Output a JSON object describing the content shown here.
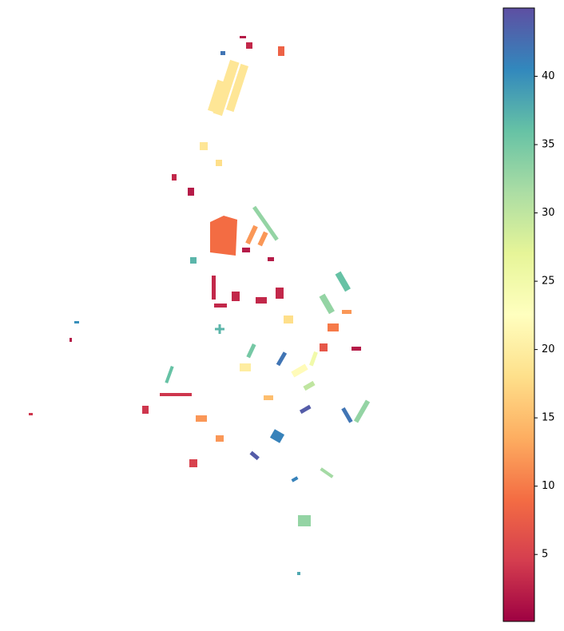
{
  "map_data": {
    "colormap": "Spectral",
    "colorbar": {
      "lim": [
        0.1,
        45
      ],
      "ticks": [
        5,
        10,
        15,
        20,
        25,
        30,
        35,
        40
      ]
    },
    "buildings": [
      9,
      19,
      19,
      19,
      19,
      18,
      2,
      3,
      2,
      2,
      36,
      33,
      12,
      12,
      3,
      3,
      3,
      3,
      3,
      41,
      44,
      33,
      12,
      12,
      4,
      4,
      33,
      42,
      40,
      2,
      4,
      2,
      3,
      8,
      42,
      37,
      37,
      2,
      12,
      32,
      41,
      38,
      22,
      30,
      35,
      20,
      42,
      15,
      7,
      25,
      36,
      44,
      18,
      5,
      10,
      33
    ]
  }
}
